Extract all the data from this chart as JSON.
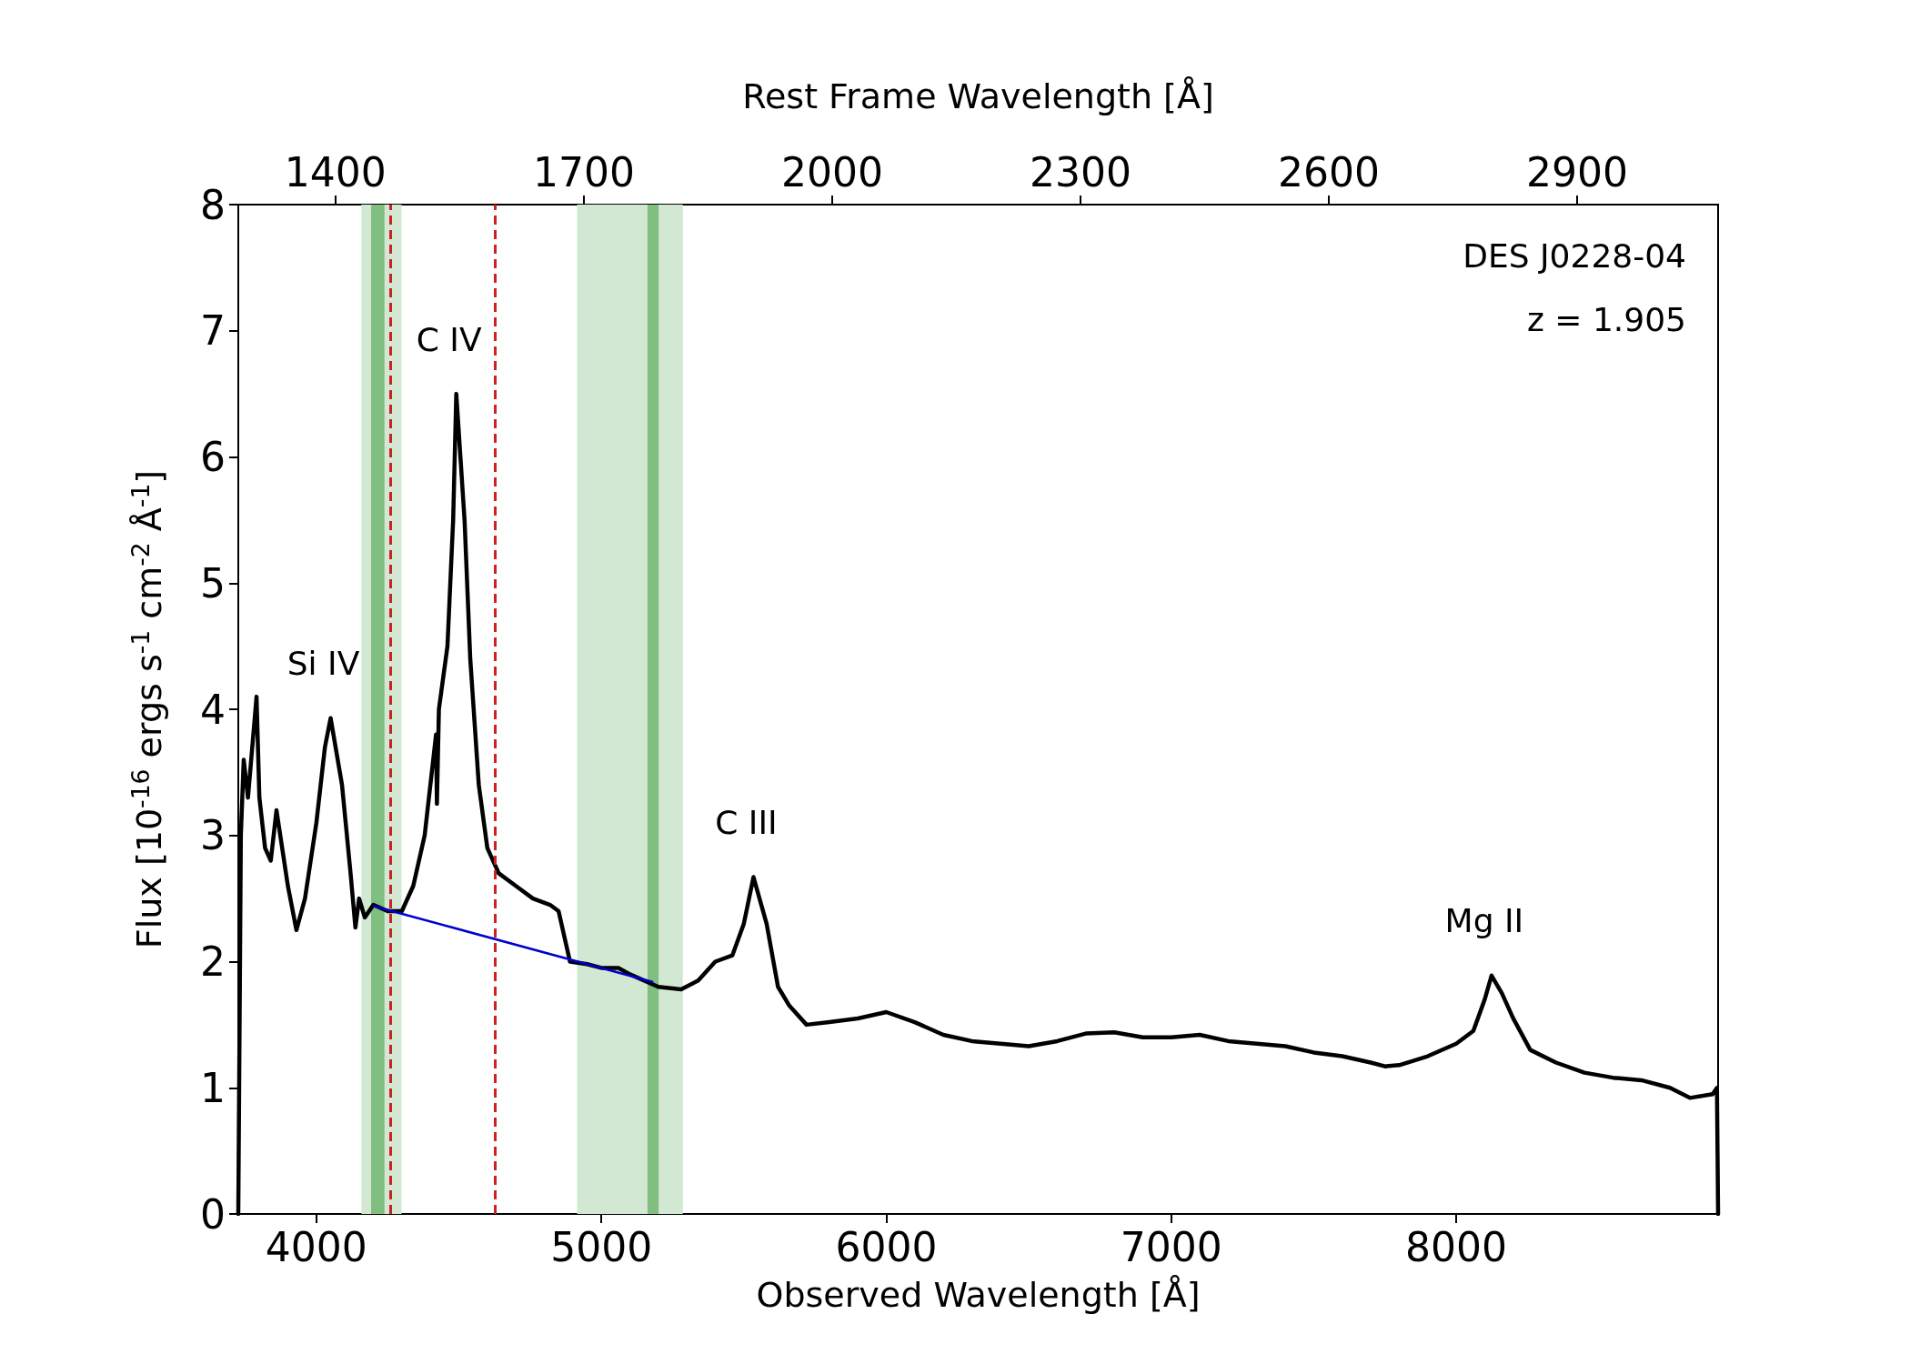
{
  "chart_data": {
    "type": "line",
    "xlabel": "Observed Wavelength [Å]",
    "ylabel": "Flux [10$^{-16}$ ergs s$^{-1}$ cm$^{-2}$ Å$^{-1}$]",
    "x2label": "Rest Frame Wavelength [Å]",
    "xlim": [
      3726,
      8919
    ],
    "xticks": [
      4000,
      5000,
      6000,
      7000,
      8000
    ],
    "x2lim": [
      1282.6,
      3070.2
    ],
    "x2ticks": [
      1400,
      1700,
      2000,
      2300,
      2600,
      2900
    ],
    "ylim": [
      0,
      8
    ],
    "yticks": [
      0,
      1,
      2,
      3,
      4,
      5,
      6,
      7,
      8
    ],
    "marker": "none",
    "line_style": "solid",
    "series": [
      {
        "color": "#000000",
        "x": [
          3726,
          3735,
          3745,
          3760,
          3775,
          3790,
          3800,
          3820,
          3840,
          3860,
          3880,
          3900,
          3930,
          3960,
          4000,
          4030,
          4050,
          4090,
          4120,
          4137,
          4150,
          4170,
          4200,
          4250,
          4300,
          4340,
          4380,
          4420,
          4423,
          4430,
          4460,
          4480,
          4491,
          4520,
          4540,
          4570,
          4600,
          4640,
          4700,
          4760,
          4820,
          4850,
          4870,
          4890,
          4950,
          5000,
          5060,
          5100,
          5200,
          5280,
          5340,
          5400,
          5460,
          5500,
          5534,
          5580,
          5620,
          5660,
          5720,
          5800,
          5900,
          6000,
          6100,
          6200,
          6300,
          6400,
          6500,
          6600,
          6700,
          6800,
          6900,
          7000,
          7100,
          7200,
          7300,
          7400,
          7500,
          7600,
          7700,
          7750,
          7800,
          7900,
          8000,
          8060,
          8100,
          8124,
          8160,
          8200,
          8260,
          8350,
          8450,
          8550,
          8650,
          8750,
          8820,
          8900,
          8915,
          8919
        ],
        "values": [
          0,
          3.0,
          3.6,
          3.3,
          3.7,
          4.1,
          3.3,
          2.9,
          2.8,
          3.2,
          2.9,
          2.6,
          2.25,
          2.5,
          3.1,
          3.7,
          3.93,
          3.4,
          2.7,
          2.27,
          2.5,
          2.35,
          2.45,
          2.4,
          2.4,
          2.6,
          3.0,
          3.8,
          3.25,
          4.0,
          4.5,
          5.5,
          6.5,
          5.5,
          4.4,
          3.4,
          2.9,
          2.7,
          2.6,
          2.5,
          2.45,
          2.4,
          2.2,
          2.0,
          1.98,
          1.95,
          1.95,
          1.9,
          1.8,
          1.78,
          1.85,
          2.0,
          2.05,
          2.3,
          2.67,
          2.3,
          1.8,
          1.65,
          1.5,
          1.52,
          1.55,
          1.6,
          1.52,
          1.42,
          1.37,
          1.35,
          1.33,
          1.37,
          1.43,
          1.44,
          1.4,
          1.4,
          1.42,
          1.37,
          1.35,
          1.33,
          1.28,
          1.25,
          1.2,
          1.17,
          1.18,
          1.25,
          1.35,
          1.45,
          1.7,
          1.89,
          1.75,
          1.55,
          1.3,
          1.2,
          1.12,
          1.08,
          1.06,
          1.0,
          0.92,
          0.95,
          1.0,
          0
        ]
      },
      {
        "color": "#0000cc",
        "x": [
          4201,
          5179
        ],
        "values": [
          2.44,
          1.84
        ]
      }
    ],
    "bands": [
      {
        "axis": "x",
        "from": 4158,
        "to": 4299,
        "color": "#d2e8d2"
      },
      {
        "axis": "x",
        "from": 4192,
        "to": 4239,
        "color": "#80bf80"
      },
      {
        "axis": "x",
        "from": 4915,
        "to": 5286,
        "color": "#d2e8d2"
      },
      {
        "axis": "x",
        "from": 5162,
        "to": 5201,
        "color": "#80bf80"
      }
    ],
    "ref_lines": [
      {
        "axis": "x",
        "value": 4261,
        "color": "#cc2222",
        "line_style": "dashed"
      },
      {
        "axis": "x",
        "value": 4628,
        "color": "#cc2222",
        "line_style": "dashed"
      }
    ],
    "annotations": [
      "DES J0228-04",
      "z = 1.905",
      {
        "text": "Si IV",
        "x": 4050,
        "y": 3.93
      },
      {
        "text": "C IV",
        "x": 4491,
        "y": 6.5
      },
      {
        "text": "C III",
        "x": 5534,
        "y": 2.67
      },
      {
        "text": "Mg II",
        "x": 8124,
        "y": 1.89
      }
    ]
  }
}
